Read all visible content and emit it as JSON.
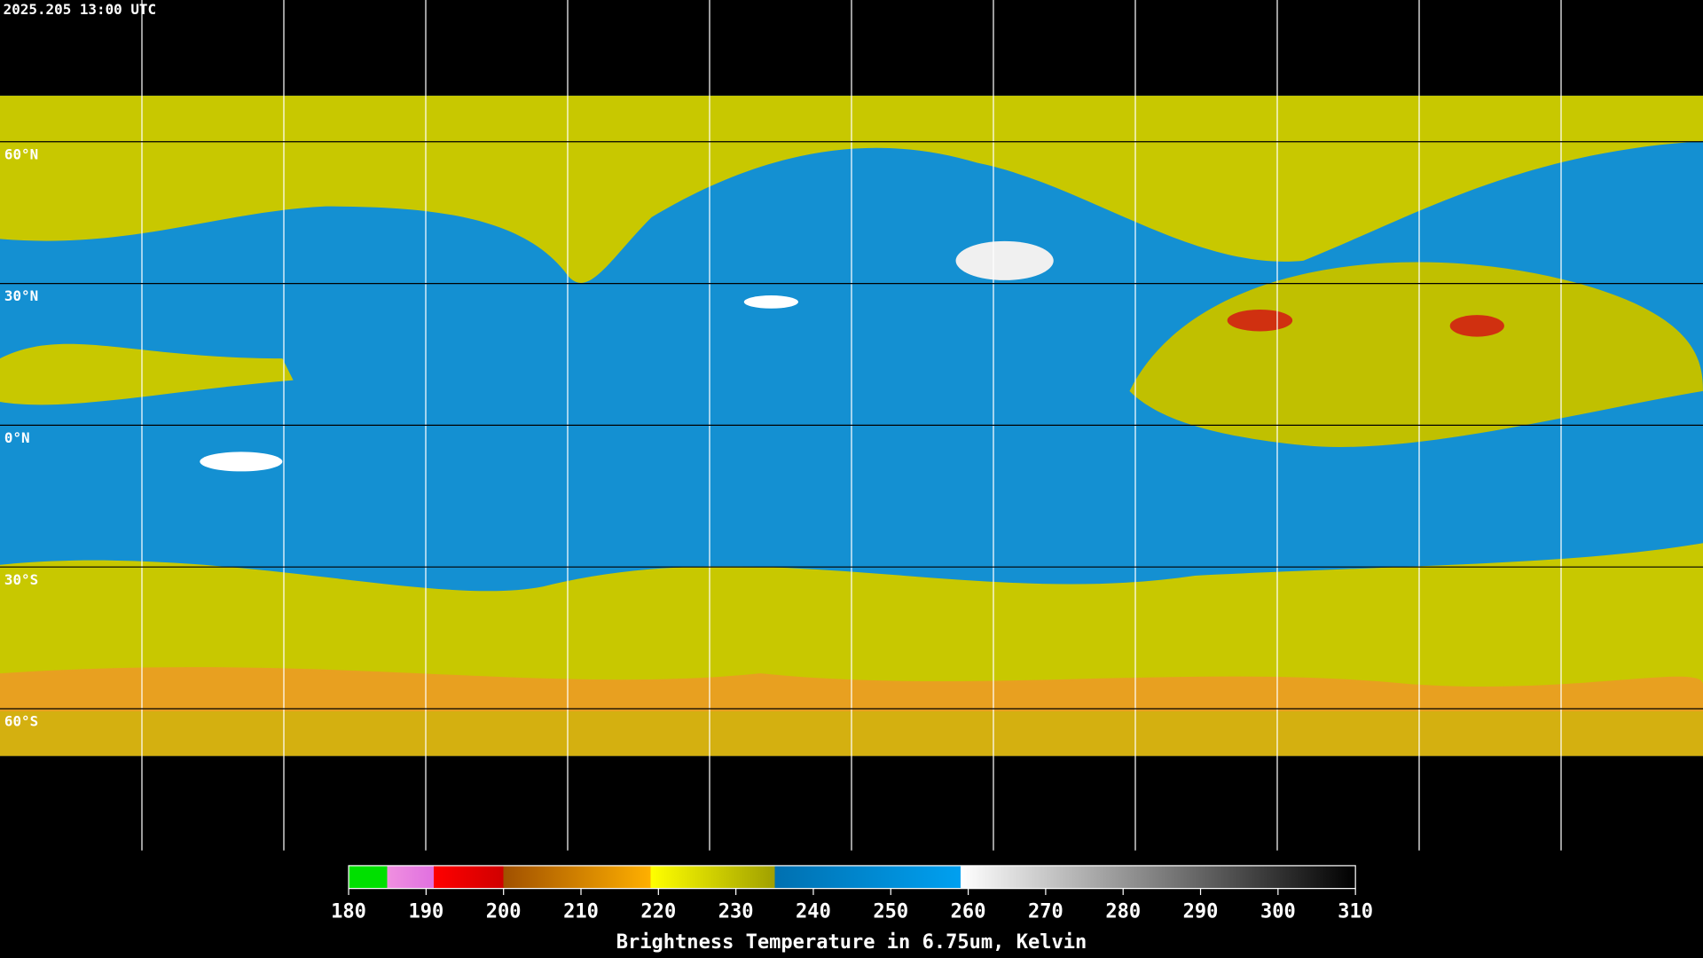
{
  "header": {
    "timestamp": "2025.205 13:00 UTC"
  },
  "map": {
    "lat_labels": [
      "60°N",
      "30°N",
      "0°N",
      "30°S",
      "60°S"
    ]
  },
  "colorbar": {
    "title": "Brightness Temperature in 6.75um, Kelvin",
    "range": [
      180,
      310
    ],
    "ticks": [
      180,
      190,
      200,
      210,
      220,
      230,
      240,
      250,
      260,
      270,
      280,
      290,
      300,
      310
    ],
    "stops": [
      {
        "value": 180,
        "color": "#00e000"
      },
      {
        "value": 185,
        "color": "#00e000"
      },
      {
        "value": 185,
        "color": "#f090e0"
      },
      {
        "value": 191,
        "color": "#e070e0"
      },
      {
        "value": 191,
        "color": "#ff0000"
      },
      {
        "value": 200,
        "color": "#d00000"
      },
      {
        "value": 200,
        "color": "#a05000"
      },
      {
        "value": 219,
        "color": "#ffb000"
      },
      {
        "value": 219,
        "color": "#ffff00"
      },
      {
        "value": 235,
        "color": "#a0a000"
      },
      {
        "value": 235,
        "color": "#0070b0"
      },
      {
        "value": 259,
        "color": "#00a0f0"
      },
      {
        "value": 259,
        "color": "#ffffff"
      },
      {
        "value": 310,
        "color": "#000000"
      }
    ]
  }
}
